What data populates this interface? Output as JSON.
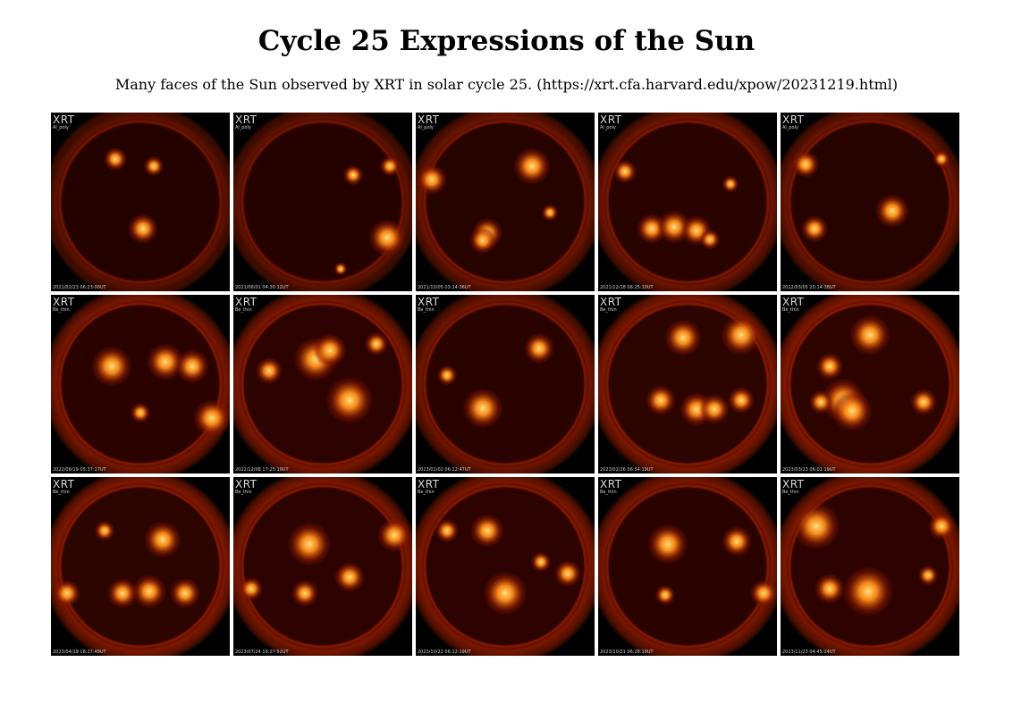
{
  "title": "Cycle 25 Expressions of the Sun",
  "subtitle": "Many faces of the Sun observed by XRT in solar cycle 25. (https://xrt.cfa.harvard.edu/xpow/20231219.html)",
  "colors": {
    "background": "#ffffff",
    "corona_dark": "#1a0000",
    "corona_mid": "#8b1a00",
    "corona_bright": "#ff8c1a",
    "hotspot": "#ffe07a"
  },
  "tiles": [
    {
      "instrument": "XRT",
      "filter": "Al_poly",
      "timestamp": "2021/02/23 06:23:00UT",
      "activity": 0.18
    },
    {
      "instrument": "XRT",
      "filter": "Al_poly",
      "timestamp": "2021/06/01 04:30:12UT",
      "activity": 0.2
    },
    {
      "instrument": "XRT",
      "filter": "Al_poly",
      "timestamp": "2021/10/05 03:14:36UT",
      "activity": 0.4
    },
    {
      "instrument": "XRT",
      "filter": "Al_poly",
      "timestamp": "2021/12/18 06:25:10UT",
      "activity": 0.45
    },
    {
      "instrument": "XRT",
      "filter": "Al_poly",
      "timestamp": "2022/03/05 20:14:38UT",
      "activity": 0.4
    },
    {
      "instrument": "XRT",
      "filter": "Be_thin",
      "timestamp": "2022/06/19 05:37:17UT",
      "activity": 0.65
    },
    {
      "instrument": "XRT",
      "filter": "Be_thin",
      "timestamp": "2022/12/08 17:25:19UT",
      "activity": 0.7
    },
    {
      "instrument": "XRT",
      "filter": "Be_thin",
      "timestamp": "2023/01/02 06:22:47UT",
      "activity": 0.5
    },
    {
      "instrument": "XRT",
      "filter": "Be_thin",
      "timestamp": "2023/02/26 06:54:19UT",
      "activity": 0.75
    },
    {
      "instrument": "XRT",
      "filter": "Be_thin",
      "timestamp": "2023/03/23 06:01:19UT",
      "activity": 0.8
    },
    {
      "instrument": "XRT",
      "filter": "Be_thin",
      "timestamp": "2023/04/19 18:27:49UT",
      "activity": 0.75
    },
    {
      "instrument": "XRT",
      "filter": "Be_thin",
      "timestamp": "2023/07/24 18:27:52UT",
      "activity": 0.7
    },
    {
      "instrument": "XRT",
      "filter": "Be_thin",
      "timestamp": "2023/10/22 06:12:19UT",
      "activity": 0.7
    },
    {
      "instrument": "XRT",
      "filter": "Be_thin",
      "timestamp": "2023/10/31 06:28:19UT",
      "activity": 0.65
    },
    {
      "instrument": "XRT",
      "filter": "Be_thin",
      "timestamp": "2023/11/23 04:45:24UT",
      "activity": 0.7
    }
  ]
}
